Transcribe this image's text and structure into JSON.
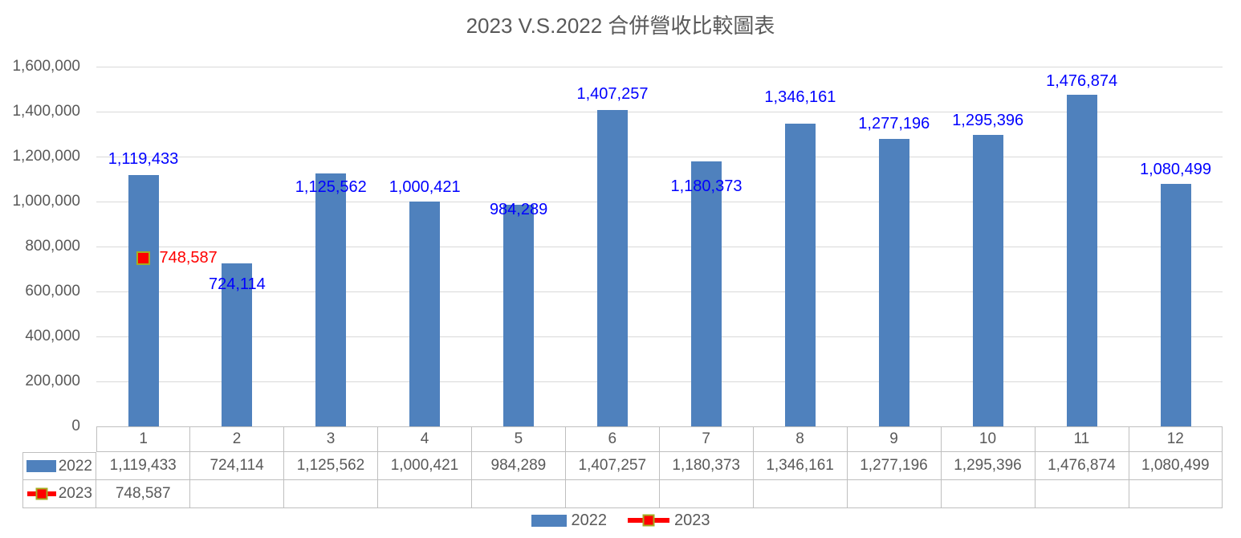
{
  "title": "2023 V.S.2022 合併營收比較圖表",
  "chart_data": {
    "type": "bar",
    "title": "2023 V.S.2022 合併營收比較圖表",
    "categories": [
      "1",
      "2",
      "3",
      "4",
      "5",
      "6",
      "7",
      "8",
      "9",
      "10",
      "11",
      "12"
    ],
    "series": [
      {
        "name": "2022",
        "type": "column",
        "color": "#4f81bd",
        "values": [
          1119433,
          724114,
          1125562,
          1000421,
          984289,
          1407257,
          1180373,
          1346161,
          1277196,
          1295396,
          1476874,
          1080499
        ],
        "labels": [
          "1,119,433",
          "724,114",
          "1,125,562",
          "1,000,421",
          "984,289",
          "1,407,257",
          "1,180,373",
          "1,346,161",
          "1,277,196",
          "1,295,396",
          "1,476,874",
          "1,080,499"
        ],
        "label_color": "#0000ff"
      },
      {
        "name": "2023",
        "type": "line",
        "color": "#ff0000",
        "marker": "square",
        "marker_border_color": "#a5ad21",
        "values": [
          748587,
          null,
          null,
          null,
          null,
          null,
          null,
          null,
          null,
          null,
          null,
          null
        ],
        "labels": [
          "748,587",
          "",
          "",
          "",
          "",
          "",
          "",
          "",
          "",
          "",
          "",
          ""
        ],
        "label_color": "#ff0000"
      }
    ],
    "ylim": [
      0,
      1600000
    ],
    "yticks": [
      0,
      200000,
      400000,
      600000,
      800000,
      1000000,
      1200000,
      1400000,
      1600000
    ],
    "ytick_labels": [
      "0",
      "200,000",
      "400,000",
      "600,000",
      "800,000",
      "1,000,000",
      "1,200,000",
      "1,400,000",
      "1,600,000"
    ],
    "grid": true,
    "legend_position": "bottom",
    "has_data_table": true,
    "label_dy": [
      -20,
      26,
      17,
      -18,
      6,
      -20,
      31,
      -33,
      -19,
      -18,
      -17,
      -18
    ]
  },
  "legend": {
    "items": [
      {
        "label": "2022",
        "color": "#4f81bd",
        "shape": "rect"
      },
      {
        "label": "2023",
        "color": "#ff0000",
        "shape": "line-square"
      }
    ]
  }
}
